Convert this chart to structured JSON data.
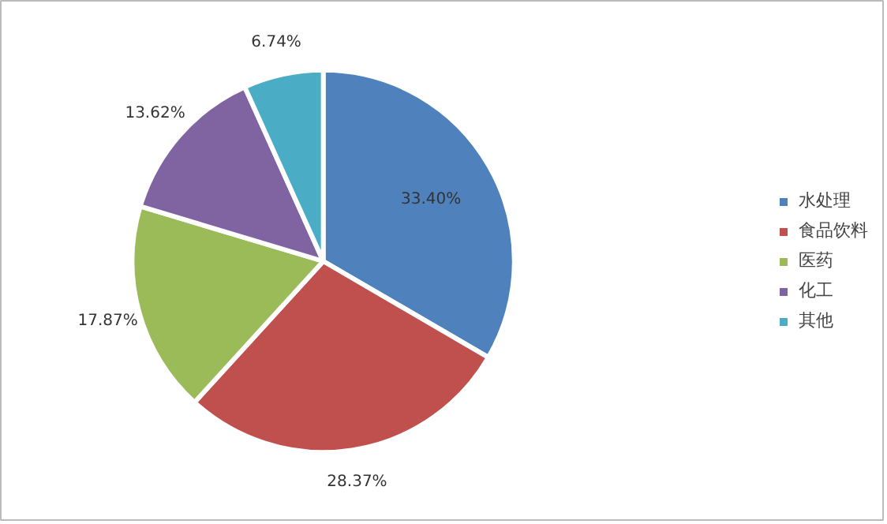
{
  "chart_data": {
    "type": "pie",
    "categories": [
      "水处理",
      "食品饮料",
      "医药",
      "化工",
      "其他"
    ],
    "values": [
      33.4,
      28.37,
      17.87,
      13.62,
      6.74
    ],
    "colors": [
      "#4f81bd",
      "#c0504d",
      "#9bbb59",
      "#8064a2",
      "#4bacc6"
    ],
    "value_labels": [
      "33.40%",
      "28.37%",
      "17.87%",
      "13.62%",
      "6.74%"
    ],
    "legend": "right"
  }
}
